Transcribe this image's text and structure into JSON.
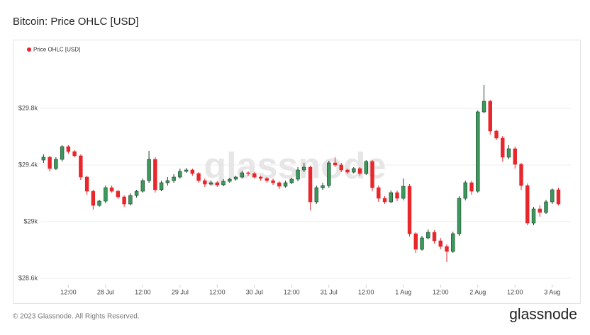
{
  "title": "Bitcoin: Price OHLC [USD]",
  "footer": "© 2023 Glassnode. All Rights Reserved.",
  "logo": "glassnode",
  "chart_data": {
    "type": "candlestick",
    "watermark": "glassnode",
    "series": [
      {
        "name": "Price OHLC [USD]",
        "color": "#e8262b",
        "up_color": "#3a9a5c",
        "down_color": "#e8262b",
        "open": [
          29435,
          29455,
          29375,
          29440,
          29530,
          29495,
          29465,
          29315,
          29215,
          29115,
          29145,
          29240,
          29215,
          29175,
          29125,
          29185,
          29215,
          29290,
          29440,
          29225,
          29275,
          29290,
          29315,
          29355,
          29365,
          29340,
          29290,
          29265,
          29275,
          29260,
          29285,
          29300,
          29315,
          29345,
          29340,
          29315,
          29305,
          29290,
          29275,
          29250,
          29275,
          29300,
          29365,
          29385,
          29140,
          29240,
          29255,
          29415,
          29400,
          29365,
          29350,
          29375,
          29340,
          29425,
          29240,
          29165,
          29140,
          29205,
          29165,
          29250,
          28915,
          28805,
          28885,
          28925,
          28865,
          28825,
          28790,
          28915,
          29165,
          29275,
          29215,
          29775,
          29850,
          29640,
          29590,
          29455,
          29515,
          29405,
          29255,
          28990,
          29090,
          29065,
          29140,
          29225
        ],
        "high": [
          29475,
          29465,
          29455,
          29540,
          29540,
          29505,
          29475,
          29325,
          29225,
          29155,
          29255,
          29255,
          29225,
          29185,
          29200,
          29225,
          29305,
          29500,
          29455,
          29290,
          29315,
          29335,
          29375,
          29380,
          29375,
          29350,
          29305,
          29290,
          29285,
          29300,
          29310,
          29325,
          29360,
          29355,
          29350,
          29325,
          29315,
          29305,
          29285,
          29290,
          29310,
          29385,
          29415,
          29395,
          29255,
          29275,
          29430,
          29455,
          29415,
          29375,
          29385,
          29385,
          29435,
          29435,
          29255,
          29180,
          29220,
          29220,
          29305,
          29265,
          28925,
          28900,
          28945,
          28940,
          28885,
          28840,
          28930,
          29180,
          29290,
          29290,
          29785,
          29965,
          29860,
          29650,
          29605,
          29540,
          29530,
          29415,
          29270,
          29105,
          29115,
          29155,
          29235,
          29240
        ],
        "low": [
          29415,
          29355,
          29365,
          29425,
          29480,
          29455,
          29295,
          29190,
          29085,
          29105,
          29130,
          29205,
          29160,
          29105,
          29115,
          29170,
          29205,
          29275,
          29205,
          29215,
          29255,
          29275,
          29305,
          29345,
          29325,
          29275,
          29245,
          29255,
          29245,
          29250,
          29275,
          29290,
          29305,
          29325,
          29305,
          29290,
          29275,
          29260,
          29230,
          29240,
          29265,
          29285,
          29350,
          29080,
          29125,
          29225,
          29240,
          29385,
          29350,
          29335,
          29340,
          29325,
          29330,
          29215,
          29140,
          29125,
          29130,
          29145,
          29150,
          28895,
          28780,
          28795,
          28875,
          28845,
          28805,
          28715,
          28780,
          28900,
          29150,
          29190,
          29205,
          29765,
          29615,
          29575,
          29425,
          29440,
          29375,
          29225,
          28975,
          28975,
          29035,
          29055,
          29125,
          29115
        ],
        "close": [
          29455,
          29375,
          29440,
          29530,
          29495,
          29465,
          29315,
          29215,
          29115,
          29145,
          29240,
          29215,
          29175,
          29125,
          29185,
          29215,
          29290,
          29440,
          29225,
          29275,
          29290,
          29315,
          29355,
          29365,
          29340,
          29290,
          29265,
          29275,
          29260,
          29285,
          29300,
          29315,
          29345,
          29340,
          29315,
          29305,
          29290,
          29275,
          29250,
          29275,
          29300,
          29365,
          29385,
          29140,
          29240,
          29255,
          29415,
          29400,
          29365,
          29350,
          29375,
          29340,
          29425,
          29240,
          29165,
          29140,
          29205,
          29165,
          29250,
          28915,
          28805,
          28885,
          28925,
          28865,
          28825,
          28790,
          28915,
          29165,
          29275,
          29215,
          29775,
          29850,
          29640,
          29590,
          29455,
          29515,
          29405,
          29255,
          28990,
          29090,
          29065,
          29140,
          29225,
          29125
        ]
      }
    ],
    "xlim": [
      -0.5,
      85
    ],
    "xticks": [
      {
        "value": 4,
        "label": "12:00"
      },
      {
        "value": 10,
        "label": "28 Jul"
      },
      {
        "value": 16,
        "label": "12:00"
      },
      {
        "value": 22,
        "label": "29 Jul"
      },
      {
        "value": 28,
        "label": "12:00"
      },
      {
        "value": 34,
        "label": "30 Jul"
      },
      {
        "value": 40,
        "label": "12:00"
      },
      {
        "value": 46,
        "label": "31 Jul"
      },
      {
        "value": 52,
        "label": "12:00"
      },
      {
        "value": 58,
        "label": "1 Aug"
      },
      {
        "value": 64,
        "label": "12:00"
      },
      {
        "value": 70,
        "label": "2 Aug"
      },
      {
        "value": 76,
        "label": "12:00"
      },
      {
        "value": 82,
        "label": "3 Aug"
      }
    ],
    "ylim": [
      28560,
      30000
    ],
    "yticks": [
      {
        "value": 28600,
        "label": "$28.6k"
      },
      {
        "value": 29000,
        "label": "$29k"
      },
      {
        "value": 29400,
        "label": "$29.4k"
      },
      {
        "value": 29800,
        "label": "$29.8k"
      }
    ],
    "grid": true,
    "legend": "top-left"
  }
}
